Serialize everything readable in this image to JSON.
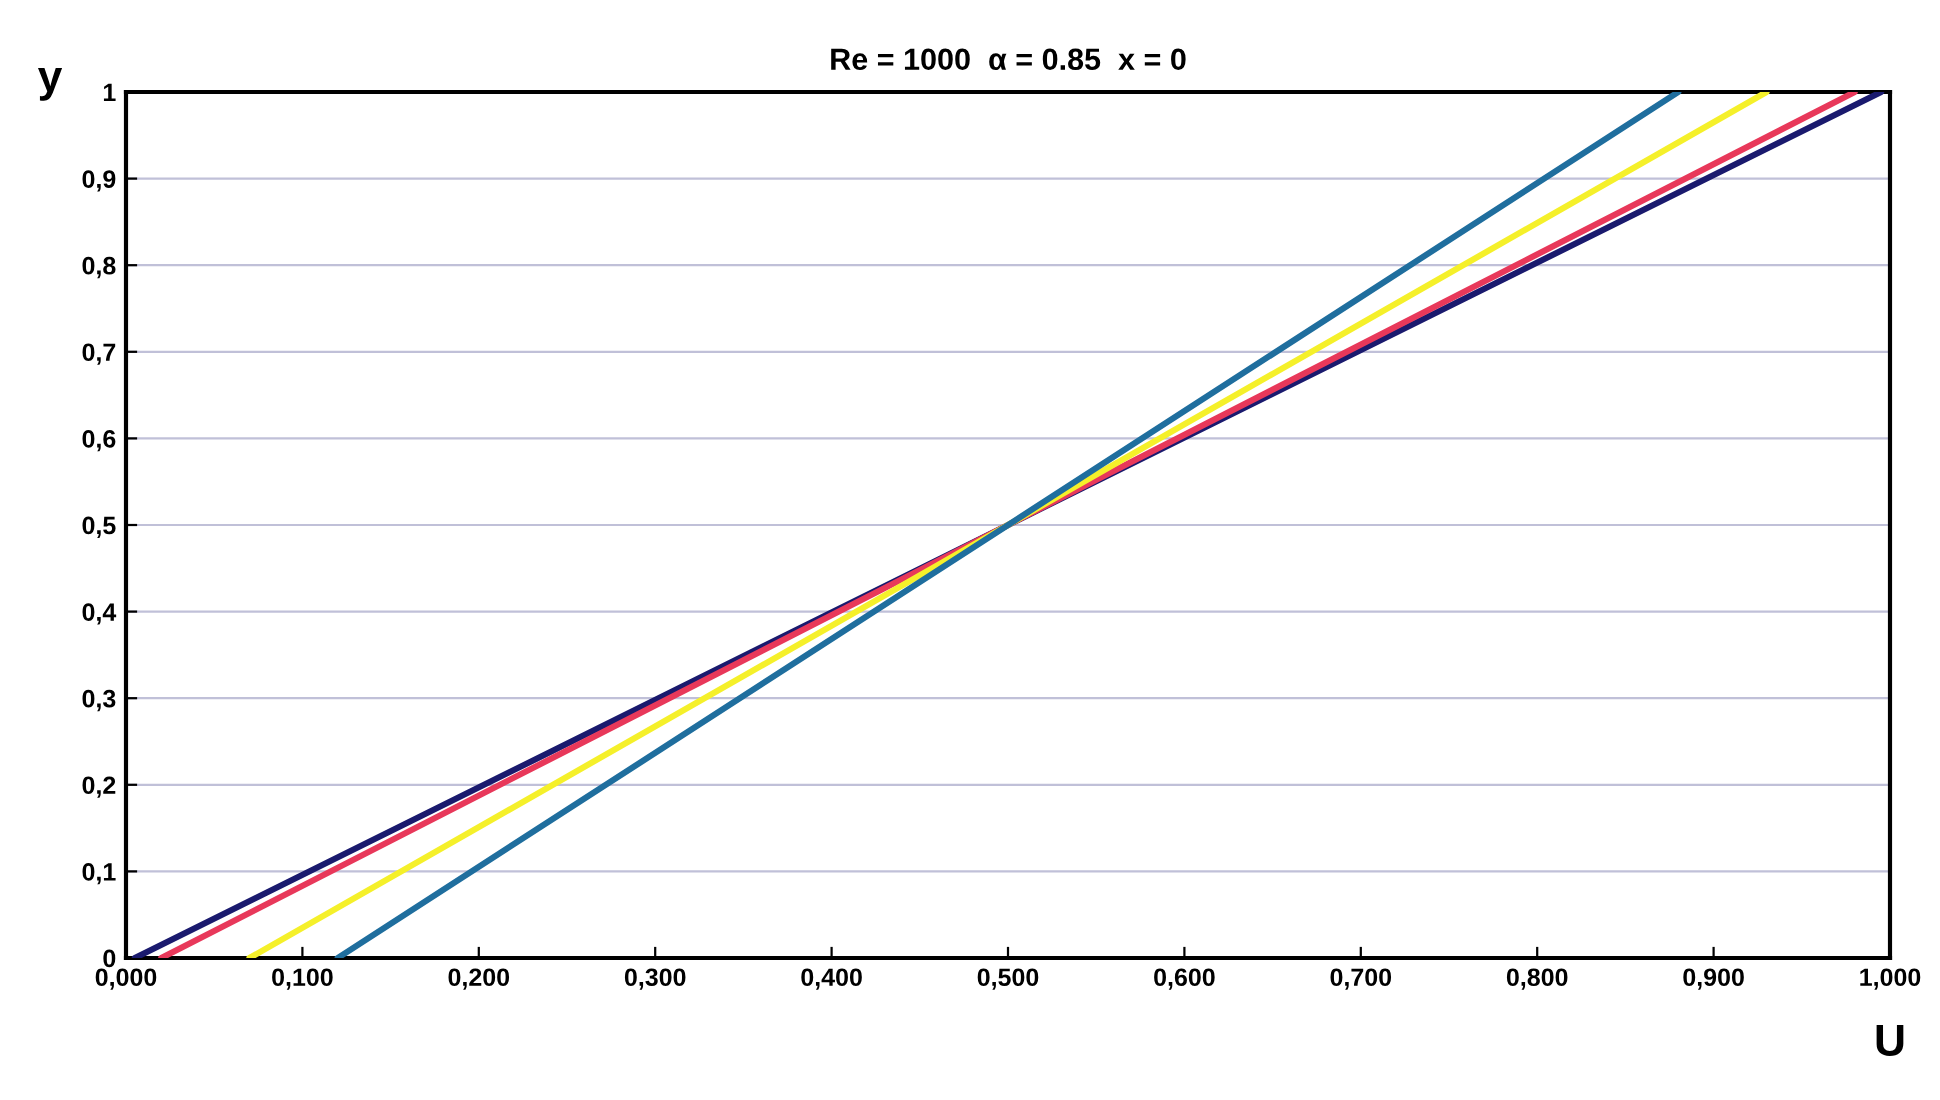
{
  "chart_data": {
    "type": "line",
    "title": "Re = 1000  α = 0.85  x = 0",
    "xlabel": "U",
    "ylabel": "y",
    "series": [
      {
        "color": "#1a1a6e",
        "x": [
          0.005,
          0.995
        ],
        "values": [
          0,
          1
        ]
      },
      {
        "color": "#e8385a",
        "x": [
          0.02,
          0.98
        ],
        "values": [
          0,
          1
        ]
      },
      {
        "color": "#f5f02a",
        "x": [
          0.07,
          0.93
        ],
        "values": [
          0,
          1
        ]
      },
      {
        "color": "#1f6e9e",
        "x": [
          0.12,
          0.88
        ],
        "values": [
          0,
          1
        ]
      }
    ],
    "xlim": [
      0,
      1
    ],
    "ylim": [
      0,
      1
    ],
    "xticks": [
      {
        "value": 0,
        "label": "0,000"
      },
      {
        "value": 0.1,
        "label": "0,100"
      },
      {
        "value": 0.2,
        "label": "0,200"
      },
      {
        "value": 0.3,
        "label": "0,300"
      },
      {
        "value": 0.4,
        "label": "0,400"
      },
      {
        "value": 0.5,
        "label": "0,500"
      },
      {
        "value": 0.6,
        "label": "0,600"
      },
      {
        "value": 0.7,
        "label": "0,700"
      },
      {
        "value": 0.8,
        "label": "0,800"
      },
      {
        "value": 0.9,
        "label": "0,900"
      },
      {
        "value": 1,
        "label": "1,000"
      }
    ],
    "yticks": [
      0,
      {
        "value": 0.1,
        "label": "0,1"
      },
      {
        "value": 0.2,
        "label": "0,2"
      },
      {
        "value": 0.3,
        "label": "0,3"
      },
      {
        "value": 0.4,
        "label": "0,4"
      },
      {
        "value": 0.5,
        "label": "0,5"
      },
      {
        "value": 0.6,
        "label": "0,6"
      },
      {
        "value": 0.7,
        "label": "0,7"
      },
      {
        "value": 0.8,
        "label": "0,8"
      },
      {
        "value": 0.9,
        "label": "0,9"
      },
      1
    ],
    "grid": "y",
    "legend": false,
    "marker": "none",
    "line_style": "solid"
  }
}
